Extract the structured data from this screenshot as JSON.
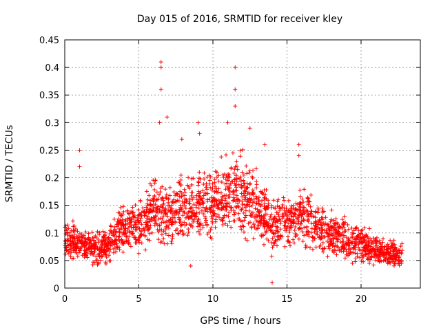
{
  "chart_data": {
    "type": "scatter",
    "title": "Day 015 of 2016, SRMTID for receiver kley",
    "xlabel": "GPS time / hours",
    "ylabel": "SRMTID / TECUs",
    "xlim": [
      0,
      24
    ],
    "ylim": [
      0,
      0.45
    ],
    "x_ticks": [
      "0",
      "5",
      "10",
      "15",
      "20"
    ],
    "x_tick_values": [
      0,
      5,
      10,
      15,
      20
    ],
    "y_ticks": [
      "0",
      "0.05",
      "0.1",
      "0.15",
      "0.2",
      "0.25",
      "0.3",
      "0.35",
      "0.4",
      "0.45"
    ],
    "y_tick_values": [
      0,
      0.05,
      0.1,
      0.15,
      0.2,
      0.25,
      0.3,
      0.35,
      0.4,
      0.45
    ],
    "grid": true,
    "marker": "+",
    "series_color": "#ff0000",
    "x_range_data": [
      0,
      22.8
    ],
    "trend": [
      [
        0.0,
        0.09
      ],
      [
        1.0,
        0.08
      ],
      [
        2.0,
        0.07
      ],
      [
        3.0,
        0.08
      ],
      [
        4.0,
        0.11
      ],
      [
        5.0,
        0.11
      ],
      [
        6.0,
        0.14
      ],
      [
        7.0,
        0.13
      ],
      [
        8.0,
        0.14
      ],
      [
        9.0,
        0.15
      ],
      [
        10.0,
        0.15
      ],
      [
        11.0,
        0.17
      ],
      [
        12.0,
        0.17
      ],
      [
        13.0,
        0.15
      ],
      [
        14.0,
        0.11
      ],
      [
        15.0,
        0.12
      ],
      [
        16.0,
        0.13
      ],
      [
        17.0,
        0.11
      ],
      [
        18.0,
        0.1
      ],
      [
        19.0,
        0.09
      ],
      [
        20.0,
        0.08
      ],
      [
        21.0,
        0.07
      ],
      [
        22.0,
        0.06
      ],
      [
        22.8,
        0.06
      ]
    ],
    "peaks": [
      {
        "x": 6.5,
        "y": 0.41
      },
      {
        "x": 6.5,
        "y": 0.4
      },
      {
        "x": 6.5,
        "y": 0.36
      },
      {
        "x": 6.4,
        "y": 0.3
      },
      {
        "x": 6.9,
        "y": 0.31
      },
      {
        "x": 11.5,
        "y": 0.4
      },
      {
        "x": 11.5,
        "y": 0.36
      },
      {
        "x": 11.5,
        "y": 0.33
      },
      {
        "x": 11.0,
        "y": 0.3
      },
      {
        "x": 9.0,
        "y": 0.3
      },
      {
        "x": 9.1,
        "y": 0.28
      },
      {
        "x": 1.0,
        "y": 0.25
      },
      {
        "x": 1.0,
        "y": 0.22
      },
      {
        "x": 12.5,
        "y": 0.29
      },
      {
        "x": 13.5,
        "y": 0.26
      },
      {
        "x": 15.8,
        "y": 0.26
      },
      {
        "x": 15.8,
        "y": 0.24
      },
      {
        "x": 14.0,
        "y": 0.01
      },
      {
        "x": 8.5,
        "y": 0.04
      },
      {
        "x": 7.9,
        "y": 0.27
      }
    ]
  }
}
